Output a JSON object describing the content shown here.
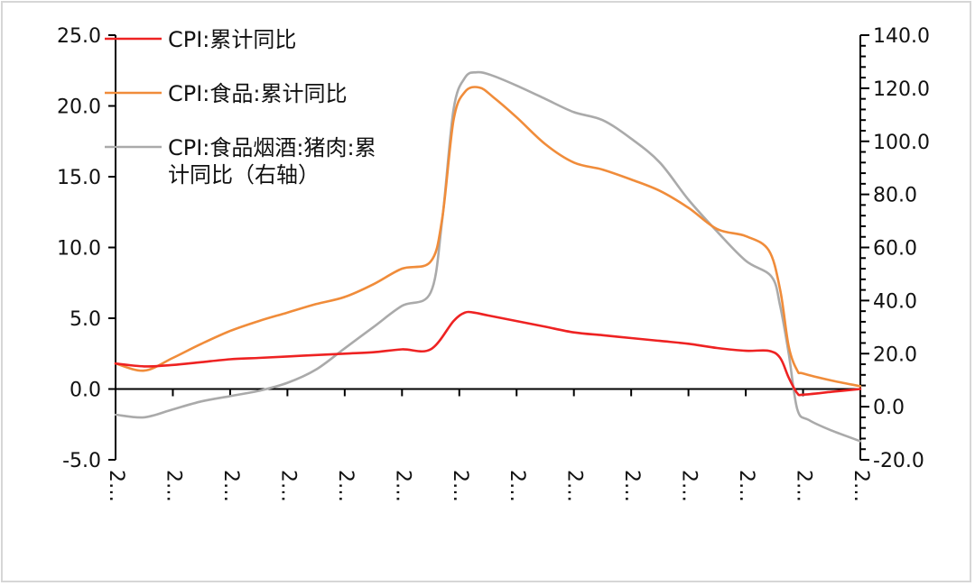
{
  "chart_data": {
    "type": "line",
    "title": "",
    "xlabel": "",
    "ylabel_left": "",
    "ylabel_right": "",
    "ylim_left": [
      -5,
      25
    ],
    "ylim_right": [
      -20,
      140
    ],
    "left_ticks": [
      "25.0",
      "20.0",
      "15.0",
      "10.0",
      "5.0",
      "0.0",
      "-5.0"
    ],
    "right_ticks": [
      "140.0",
      "120.0",
      "100.0",
      "80.0",
      "60.0",
      "40.0",
      "20.0",
      "0.0",
      "-20.0"
    ],
    "x_tick_labels": [
      "2…",
      "2…",
      "2…",
      "2…",
      "2…",
      "2…",
      "2…",
      "2…",
      "2…",
      "2…",
      "2…",
      "2…",
      "2…",
      "2…"
    ],
    "grid": false,
    "legend_position": "top-left",
    "series": [
      {
        "name": "CPI:累计同比",
        "axis": "left",
        "color": "#ee2222",
        "x": [
          0,
          0.5,
          1,
          1.5,
          2,
          2.5,
          3,
          3.5,
          4,
          4.5,
          5,
          5.5,
          5.9,
          6.1,
          6.25,
          6.5,
          7,
          7.5,
          8,
          8.5,
          9,
          9.5,
          10,
          10.5,
          11,
          11.4,
          11.6,
          11.75,
          11.9,
          12,
          12.5,
          13
        ],
        "values": [
          1.8,
          1.6,
          1.7,
          1.9,
          2.1,
          2.2,
          2.3,
          2.4,
          2.5,
          2.6,
          2.8,
          2.8,
          4.8,
          5.4,
          5.4,
          5.2,
          4.8,
          4.4,
          4.0,
          3.8,
          3.6,
          3.4,
          3.2,
          2.9,
          2.7,
          2.7,
          2.2,
          0.8,
          -0.3,
          -0.4,
          -0.2,
          0.0
        ]
      },
      {
        "name": "CPI:食品:累计同比",
        "axis": "left",
        "color": "#f08c3a",
        "x": [
          0,
          0.5,
          1,
          1.5,
          2,
          2.5,
          3,
          3.5,
          4,
          4.5,
          5,
          5.5,
          5.7,
          5.9,
          6.1,
          6.35,
          6.6,
          7,
          7.5,
          8,
          8.5,
          9,
          9.5,
          10,
          10.5,
          11,
          11.4,
          11.6,
          11.75,
          11.9,
          12,
          12.5,
          13
        ],
        "values": [
          1.8,
          1.3,
          2.2,
          3.2,
          4.1,
          4.8,
          5.4,
          6.0,
          6.5,
          7.4,
          8.5,
          9.0,
          12.0,
          19.0,
          21.0,
          21.3,
          20.6,
          19.2,
          17.3,
          16.0,
          15.5,
          14.8,
          14.0,
          12.8,
          11.3,
          10.8,
          9.8,
          7.0,
          3.0,
          1.3,
          1.1,
          0.6,
          0.2
        ]
      },
      {
        "name": "CPI:食品烟酒:猪肉:累计同比（右轴）",
        "axis": "right",
        "color": "#aaaaaa",
        "x": [
          0,
          0.5,
          1,
          1.5,
          2,
          2.5,
          3,
          3.5,
          4,
          4.5,
          5,
          5.5,
          5.7,
          5.9,
          6.1,
          6.3,
          6.55,
          7,
          7.5,
          8,
          8.5,
          9,
          9.5,
          10,
          10.5,
          11,
          11.45,
          11.6,
          11.75,
          11.9,
          12.1,
          12.5,
          13
        ],
        "values": [
          -3,
          -4,
          -1,
          2,
          4,
          6,
          9,
          14,
          22,
          30,
          38,
          43,
          70,
          112,
          124,
          126,
          125,
          121,
          116,
          111,
          108,
          101,
          92,
          78,
          66,
          55,
          49,
          38,
          20,
          -1,
          -5,
          -9,
          -13
        ]
      }
    ]
  }
}
